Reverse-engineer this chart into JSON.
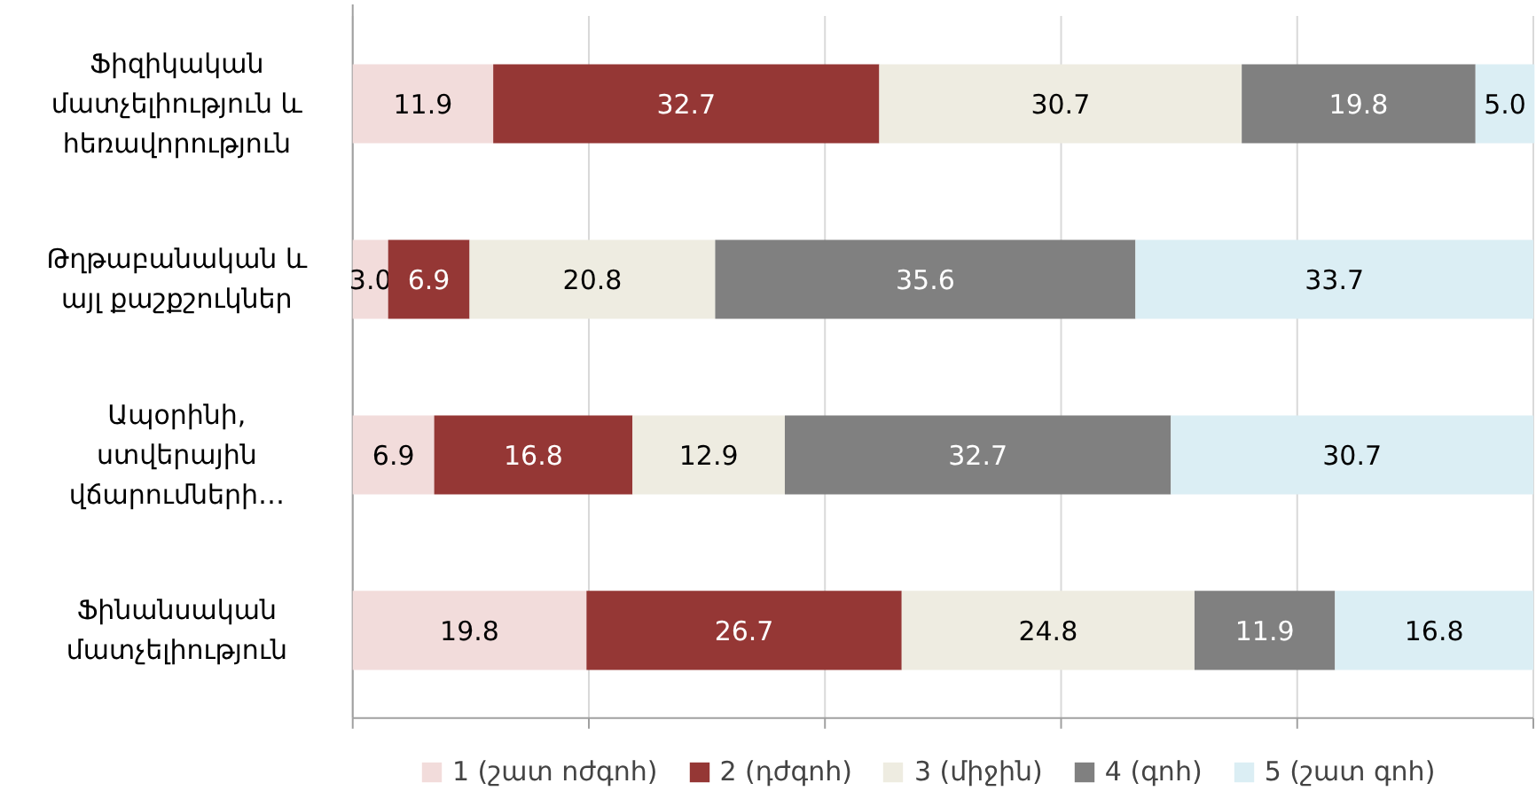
{
  "chart_data": {
    "type": "bar",
    "orientation": "horizontal",
    "stacked": true,
    "categories": [
      "Ֆիզիկական մատչելիություն և հեռավորություն",
      "Թղթաբանական և այլ քաշքշուկներ",
      "Ապօրինի, ստվերային վճարումների…",
      "Ֆինանսական մատչելիություն"
    ],
    "series": [
      {
        "name": "1 (շատ ոժգոհ)",
        "color": "#f2dcdb",
        "values": [
          11.9,
          3.0,
          6.9,
          19.8
        ],
        "value_labels": [
          "11.9",
          "3.0",
          "6.9",
          "19.8"
        ]
      },
      {
        "name": "2 (դժգոհ)",
        "color": "#953735",
        "values": [
          32.7,
          6.9,
          16.8,
          26.7
        ],
        "value_labels": [
          "32.7",
          "6.9",
          "16.8",
          "26.7"
        ]
      },
      {
        "name": "3 (միջին)",
        "color": "#eeece1",
        "values": [
          30.7,
          20.8,
          12.9,
          24.8
        ],
        "value_labels": [
          "30.7",
          "20.8",
          "12.9",
          "24.8"
        ]
      },
      {
        "name": "4 (գոհ)",
        "color": "#808080",
        "values": [
          19.8,
          35.6,
          32.7,
          11.9
        ],
        "value_labels": [
          "19.8",
          "35.6",
          "32.7",
          "11.9"
        ]
      },
      {
        "name": "5 (շատ գոհ)",
        "color": "#dbeef4",
        "values": [
          5.0,
          33.7,
          30.7,
          16.8
        ],
        "value_labels": [
          "5.0",
          "33.7",
          "30.7",
          "16.8"
        ]
      }
    ],
    "xlim": [
      0,
      100
    ],
    "xticks": [
      {
        "value": 0,
        "label": null
      },
      {
        "value": 20,
        "label": null
      },
      {
        "value": 40,
        "label": null
      },
      {
        "value": 60,
        "label": null
      },
      {
        "value": 80,
        "label": null
      },
      {
        "value": 100,
        "label": null
      }
    ],
    "tick_labels": "y",
    "grid": "x",
    "legend": "bottom"
  }
}
